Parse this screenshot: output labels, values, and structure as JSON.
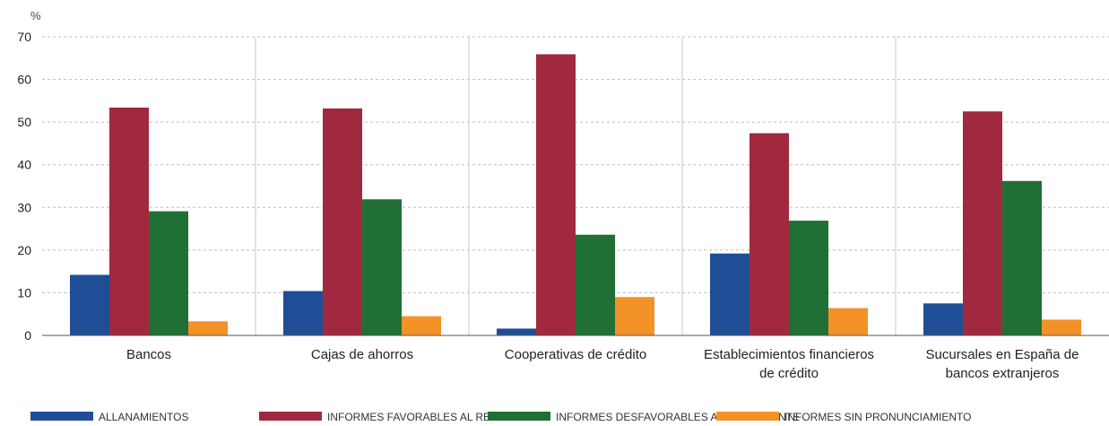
{
  "chart_data": {
    "type": "bar",
    "unit_label": "%",
    "ylim": [
      0,
      70
    ],
    "yticks": [
      0,
      10,
      20,
      30,
      40,
      50,
      60,
      70
    ],
    "grid": true,
    "legend_position": "bottom",
    "categories": [
      [
        "Bancos"
      ],
      [
        "Cajas de ahorros"
      ],
      [
        "Cooperativas de crédito"
      ],
      [
        "Establecimientos financieros",
        "de crédito"
      ],
      [
        "Sucursales en España de",
        "bancos extranjeros"
      ]
    ],
    "series": [
      {
        "name": "ALLANAMIENTOS",
        "color": "#1f4e96",
        "values": [
          14.2,
          10.4,
          1.6,
          19.2,
          7.5
        ]
      },
      {
        "name": "INFORMES FAVORABLES AL RECLAMANTE",
        "color": "#a0293f",
        "values": [
          53.4,
          53.2,
          65.9,
          47.4,
          52.5
        ]
      },
      {
        "name": "INFORMES DESFAVORABLES AL RECLAMANTE",
        "color": "#207035",
        "values": [
          29.1,
          31.9,
          23.6,
          26.9,
          36.2
        ]
      },
      {
        "name": "INFORMES SIN PRONUNCIAMIENTO",
        "color": "#f29227",
        "values": [
          3.3,
          4.5,
          9.0,
          6.4,
          3.7
        ]
      }
    ]
  }
}
